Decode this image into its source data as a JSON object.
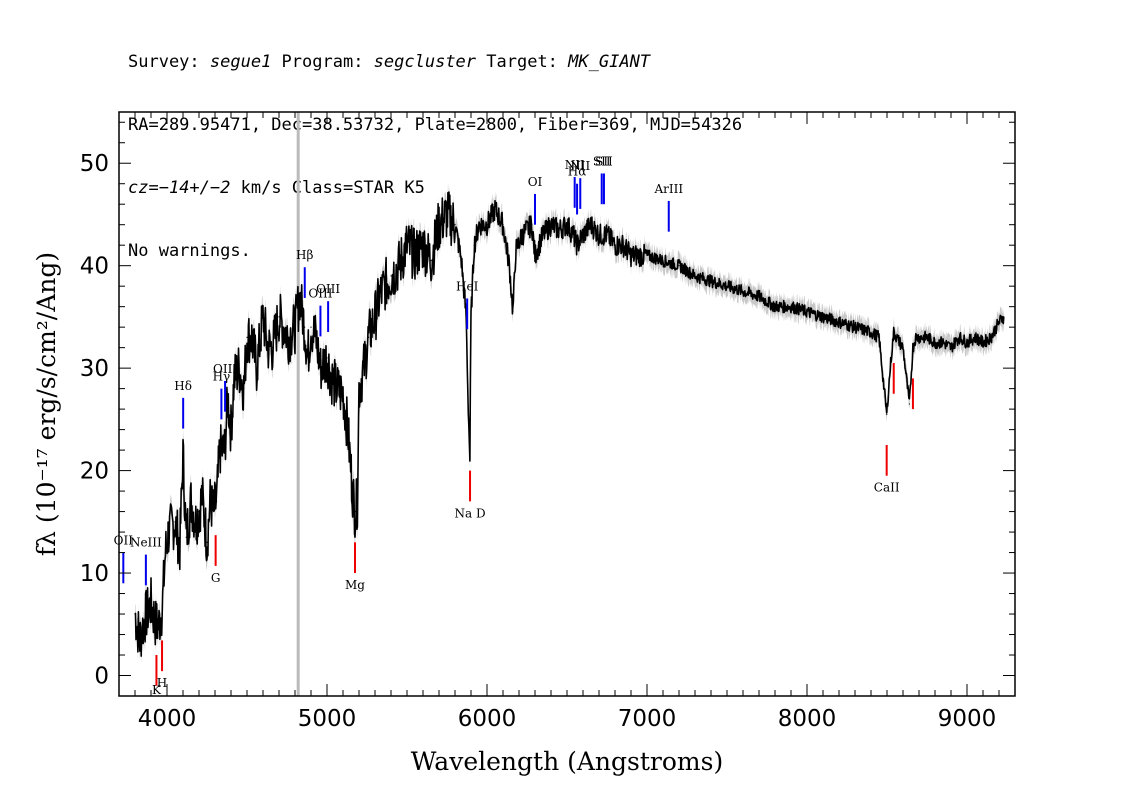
{
  "header": {
    "line1": {
      "survey_label": "Survey: ",
      "survey": "segue1",
      "program_label": " Program: ",
      "program": "segcluster",
      "target_label": " Target: ",
      "target": "MK_GIANT"
    },
    "line2": "RA=289.95471, Dec=38.53732, Plate=2800, Fiber=369, MJD=54326",
    "line3": {
      "cz": "cz",
      "value": "=−14+/−2",
      "rest": " km/s Class=STAR K5"
    },
    "line4": "No warnings."
  },
  "chart_data": {
    "type": "line",
    "xlabel": "Wavelength (Angstroms)",
    "ylabel": "fλ (10⁻¹⁷ erg/s/cm²/Ang)",
    "xlim": [
      3700,
      9300
    ],
    "ylim": [
      -2,
      55
    ],
    "x_ticks": [
      4000,
      5000,
      6000,
      7000,
      8000,
      9000
    ],
    "y_ticks": [
      0,
      10,
      20,
      30,
      40,
      50
    ],
    "grid": false,
    "marker_line": {
      "x": 4820,
      "color": "#bbbbbb"
    },
    "series": [
      {
        "color": "#000000",
        "error_band_color": "#c8c8c8",
        "x": [
          3800,
          3830,
          3860,
          3900,
          3930,
          3950,
          3970,
          3990,
          4010,
          4050,
          4080,
          4100,
          4120,
          4150,
          4180,
          4200,
          4220,
          4250,
          4270,
          4290,
          4310,
          4330,
          4360,
          4380,
          4400,
          4420,
          4450,
          4480,
          4500,
          4530,
          4560,
          4600,
          4630,
          4660,
          4700,
          4730,
          4760,
          4800,
          4830,
          4860,
          4880,
          4900,
          4930,
          4960,
          5000,
          5030,
          5060,
          5100,
          5130,
          5160,
          5175,
          5190,
          5200,
          5230,
          5260,
          5300,
          5330,
          5360,
          5400,
          5450,
          5500,
          5550,
          5600,
          5650,
          5700,
          5750,
          5800,
          5840,
          5870,
          5880,
          5893,
          5900,
          5920,
          5950,
          6000,
          6050,
          6100,
          6140,
          6162,
          6180,
          6220,
          6280,
          6300,
          6350,
          6400,
          6450,
          6500,
          6540,
          6563,
          6600,
          6650,
          6700,
          6750,
          6800,
          6850,
          6900,
          7000,
          7100,
          7200,
          7300,
          7400,
          7500,
          7600,
          7700,
          7800,
          7900,
          8000,
          8100,
          8200,
          8300,
          8400,
          8450,
          8498,
          8520,
          8542,
          8560,
          8600,
          8640,
          8662,
          8680,
          8750,
          8800,
          8850,
          8900,
          8950,
          9000,
          9050,
          9100,
          9150,
          9200,
          9230
        ],
        "values": [
          6,
          3.5,
          5.5,
          7,
          5,
          5,
          6.5,
          12,
          14,
          15,
          12.5,
          21.5,
          13.5,
          17,
          15,
          16,
          17.5,
          13,
          17,
          16,
          17,
          22,
          22,
          27,
          24,
          29,
          30,
          28,
          33,
          33,
          30,
          35,
          32,
          32,
          35,
          34,
          33,
          34,
          37,
          34,
          31,
          34,
          33,
          30,
          31,
          29,
          28,
          27.5,
          24,
          18,
          16,
          17,
          28,
          30,
          33,
          35,
          37,
          38,
          39,
          40,
          42,
          41,
          42,
          40.5,
          44,
          45,
          44,
          40.5,
          35,
          28,
          21,
          35,
          42,
          44,
          44,
          45.5,
          44,
          40,
          35.5,
          41.5,
          43,
          44,
          41,
          43,
          44,
          43.5,
          44,
          43,
          42,
          43,
          44,
          43,
          43,
          42,
          42,
          41,
          41,
          40.5,
          40,
          39,
          38.5,
          38,
          37.5,
          37,
          36,
          36,
          35.5,
          35,
          34.5,
          34,
          33.5,
          33,
          25.5,
          30,
          33.5,
          33,
          32,
          26.5,
          32,
          33,
          33,
          32.5,
          32.5,
          32,
          33,
          32.5,
          33,
          32.5,
          33,
          34.5,
          35
        ]
      }
    ],
    "emission_lines": [
      {
        "label": "OII",
        "wavelength": 3727
      },
      {
        "label": "NeIII",
        "wavelength": 3868
      },
      {
        "label": "Hδ",
        "wavelength": 4101
      },
      {
        "label": "Hγ",
        "wavelength": 4340
      },
      {
        "label": "OIII",
        "wavelength": 4363
      },
      {
        "label": "Hβ",
        "wavelength": 4861
      },
      {
        "label": "OIII",
        "wavelength": 4959
      },
      {
        "label": "OIII",
        "wavelength": 5007
      },
      {
        "label": "HeI",
        "wavelength": 5876
      },
      {
        "label": "OI",
        "wavelength": 6300
      },
      {
        "label": "NII",
        "wavelength": 6548
      },
      {
        "label": "Hα",
        "wavelength": 6563
      },
      {
        "label": "NII",
        "wavelength": 6583
      },
      {
        "label": "SII",
        "wavelength": 6717
      },
      {
        "label": "SII",
        "wavelength": 6731
      },
      {
        "label": "ArIII",
        "wavelength": 7136
      }
    ],
    "absorption_lines": [
      {
        "label": "H",
        "wavelength": 3969
      },
      {
        "label": "K",
        "wavelength": 3934
      },
      {
        "label": "G",
        "wavelength": 4304
      },
      {
        "label": "Mg",
        "wavelength": 5175
      },
      {
        "label": "Na D",
        "wavelength": 5894
      },
      {
        "label": "CaII",
        "wavelength": 8498
      },
      {
        "label": "CaII",
        "wavelength": 8542
      },
      {
        "label": "CaII",
        "wavelength": 8662
      }
    ],
    "colors": {
      "emission": "#0000ee",
      "absorption": "#ee0000",
      "spectrum": "#000000"
    }
  }
}
